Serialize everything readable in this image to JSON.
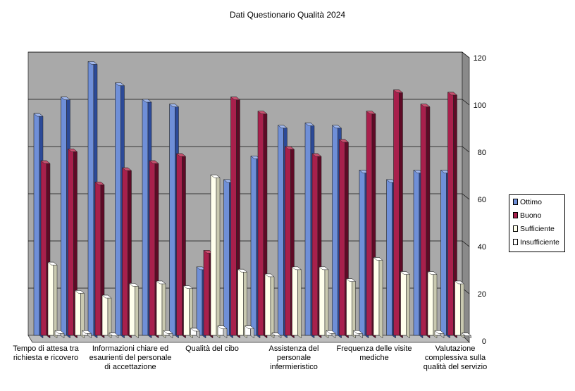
{
  "chart_data": {
    "type": "bar",
    "title": "Dati Questionario Qualità 2024",
    "categories": [
      "Tempo di attesa tra richiesta e ricovero",
      "",
      "",
      "Informazioni chiare ed esaurienti del personale di accettazione",
      "",
      "",
      "Qualità del cibo",
      "",
      "",
      "Assistenza del personale infermieristico",
      "",
      "",
      "Frequenza delle visite mediche",
      "",
      "",
      "Valutazione complessiva sulla qualità del servizio"
    ],
    "series": [
      {
        "name": "Ottimo",
        "color": "#6f8fd8",
        "values": [
          94,
          101,
          116,
          107,
          100,
          98,
          29,
          66,
          76,
          89,
          90,
          89,
          70,
          66,
          70,
          70
        ]
      },
      {
        "name": "Buono",
        "color": "#a8204c",
        "values": [
          74,
          79,
          65,
          71,
          74,
          77,
          36,
          101,
          95,
          80,
          77,
          83,
          95,
          104,
          98,
          103
        ]
      },
      {
        "name": "Sufficiente",
        "color": "#ffffec",
        "values": [
          31,
          19,
          17,
          22,
          23,
          21,
          68,
          28,
          26,
          29,
          29,
          24,
          33,
          27,
          27,
          23
        ]
      },
      {
        "name": "Insufficiente",
        "color": "#ffffff",
        "values": [
          2,
          2,
          1,
          0,
          2,
          3,
          4,
          4,
          1,
          0,
          2,
          2,
          0,
          0,
          2,
          1
        ]
      }
    ],
    "ylim": [
      0,
      120
    ],
    "yticks": [
      0,
      20,
      40,
      60,
      80,
      100,
      120
    ],
    "y_axis_side": "right",
    "grid": true,
    "legend_position": "right"
  }
}
